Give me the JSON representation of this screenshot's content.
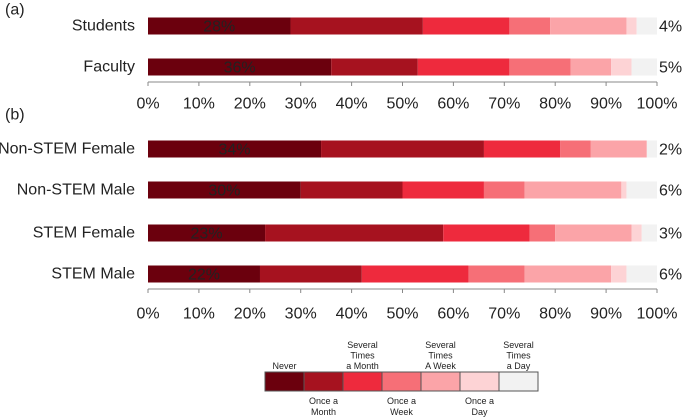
{
  "panels": [
    {
      "panel_label": "(a)",
      "categories": [
        "Students",
        "Faculty"
      ],
      "inside_labels": [
        "28%",
        "36%"
      ],
      "outside_labels": [
        "4%",
        "5%"
      ],
      "xticks": [
        "0%",
        "10%",
        "20%",
        "30%",
        "40%",
        "50%",
        "60%",
        "70%",
        "80%",
        "90%",
        "100%"
      ]
    },
    {
      "panel_label": "(b)",
      "categories": [
        "Non-STEM Female",
        "Non-STEM Male",
        "STEM Female",
        "STEM Male"
      ],
      "inside_labels": [
        "34%",
        "30%",
        "23%",
        "22%"
      ],
      "outside_labels": [
        "2%",
        "6%",
        "3%",
        "6%"
      ],
      "xticks": [
        "0%",
        "10%",
        "20%",
        "30%",
        "40%",
        "50%",
        "60%",
        "70%",
        "80%",
        "90%",
        "100%"
      ]
    }
  ],
  "legend": {
    "top_labels": [
      [
        "Never"
      ],
      [
        "Several",
        "Times",
        "a Month"
      ],
      [
        "Several",
        "Times",
        "A Week"
      ],
      [
        "Several",
        "Times",
        "a Day"
      ]
    ],
    "bottom_labels": [
      [
        "Once a",
        "Month"
      ],
      [
        "Once a",
        "Week"
      ],
      [
        "Once a",
        "Day"
      ]
    ]
  },
  "chart_data": [
    {
      "type": "bar",
      "orientation": "horizontal",
      "stacked": true,
      "panel": "(a)",
      "categories": [
        "Students",
        "Faculty"
      ],
      "xlim": [
        0,
        100
      ],
      "series": [
        {
          "name": "Never",
          "color": "#6b000d",
          "values": [
            28,
            36
          ]
        },
        {
          "name": "Once a Month",
          "color": "#a6121f",
          "values": [
            26,
            17
          ]
        },
        {
          "name": "Several Times a Month",
          "color": "#ee2a3d",
          "values": [
            17,
            18
          ]
        },
        {
          "name": "Once a Week",
          "color": "#f66f77",
          "values": [
            8,
            12
          ]
        },
        {
          "name": "Several Times A Week",
          "color": "#fba4a8",
          "values": [
            15,
            8
          ]
        },
        {
          "name": "Once a Day",
          "color": "#fdd3d5",
          "values": [
            2,
            4
          ]
        },
        {
          "name": "Several Times a Day",
          "color": "#f2f2f2",
          "values": [
            4,
            5
          ]
        }
      ]
    },
    {
      "type": "bar",
      "orientation": "horizontal",
      "stacked": true,
      "panel": "(b)",
      "categories": [
        "Non-STEM Female",
        "Non-STEM Male",
        "STEM Female",
        "STEM Male"
      ],
      "xlim": [
        0,
        100
      ],
      "series": [
        {
          "name": "Never",
          "color": "#6b000d",
          "values": [
            34,
            30,
            23,
            22
          ]
        },
        {
          "name": "Once a Month",
          "color": "#a6121f",
          "values": [
            32,
            20,
            35,
            20
          ]
        },
        {
          "name": "Several Times a Month",
          "color": "#ee2a3d",
          "values": [
            15,
            16,
            17,
            21
          ]
        },
        {
          "name": "Once a Week",
          "color": "#f66f77",
          "values": [
            6,
            8,
            5,
            11
          ]
        },
        {
          "name": "Several Times A Week",
          "color": "#fba4a8",
          "values": [
            11,
            19,
            15,
            17
          ]
        },
        {
          "name": "Once a Day",
          "color": "#fdd3d5",
          "values": [
            0,
            1,
            2,
            3
          ]
        },
        {
          "name": "Several Times a Day",
          "color": "#f2f2f2",
          "values": [
            2,
            6,
            3,
            6
          ]
        }
      ]
    }
  ]
}
